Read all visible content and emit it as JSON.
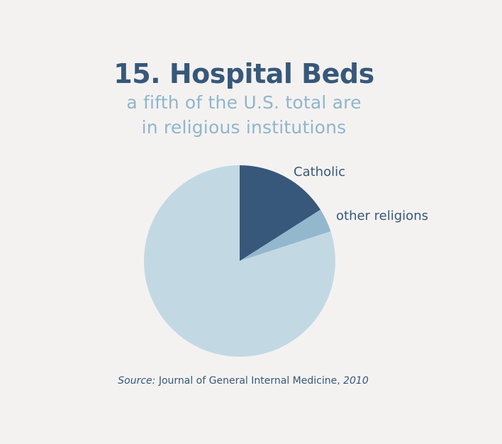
{
  "chart_data": {
    "type": "pie",
    "title": "15. Hospital Beds",
    "subtitle_line1": "a fifth of the U.S. total are",
    "subtitle_line2": "in religious institutions",
    "slices": [
      {
        "label": "Catholic",
        "value": 16,
        "color": "#37587a"
      },
      {
        "label": "other religions",
        "value": 4,
        "color": "#93b8ce"
      },
      {
        "label": "",
        "value": 80,
        "color": "#c2d9e4"
      }
    ],
    "source_prefix": "Source:",
    "source_text": "Journal of General Internal Medicine,",
    "source_year": "2010"
  }
}
